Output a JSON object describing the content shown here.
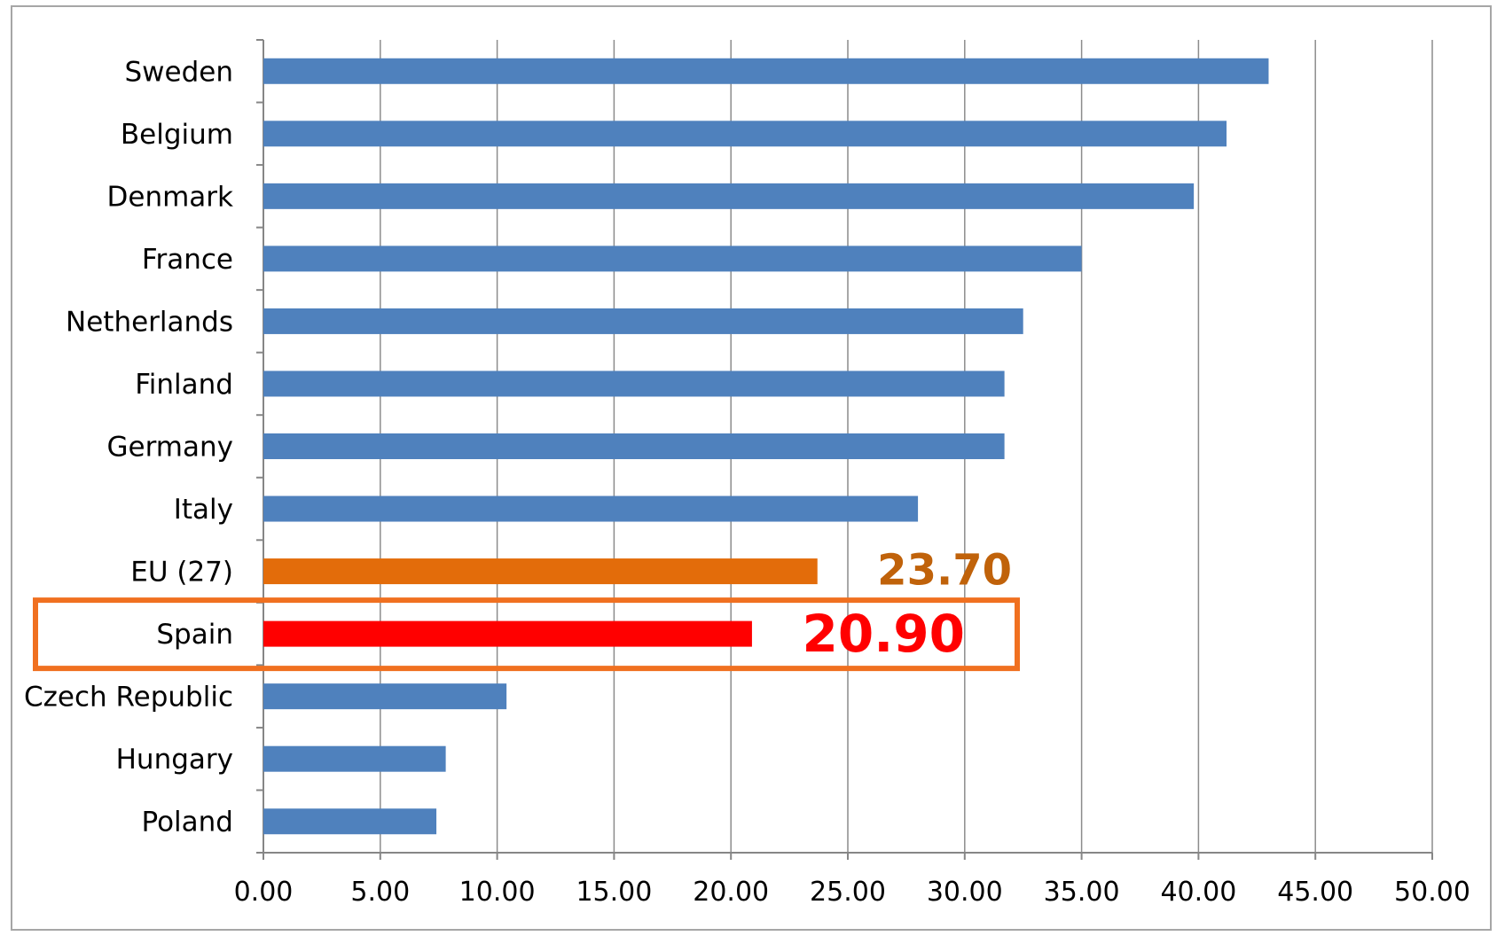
{
  "chart_data": {
    "type": "bar",
    "orientation": "horizontal",
    "categories": [
      "Sweden",
      "Belgium",
      "Denmark",
      "France",
      "Netherlands",
      "Finland",
      "Germany",
      "Italy",
      "EU (27)",
      "Spain",
      "Czech Republic",
      "Hungary",
      "Poland"
    ],
    "values": [
      43.0,
      41.2,
      39.8,
      35.0,
      32.5,
      31.7,
      31.7,
      28.0,
      23.7,
      20.9,
      10.4,
      7.8,
      7.4
    ],
    "bar_colors": [
      "#4f81bd",
      "#4f81bd",
      "#4f81bd",
      "#4f81bd",
      "#4f81bd",
      "#4f81bd",
      "#4f81bd",
      "#4f81bd",
      "#e36c0a",
      "#ff0000",
      "#4f81bd",
      "#4f81bd",
      "#4f81bd"
    ],
    "xlim": [
      0,
      50
    ],
    "x_ticks": [
      "0.00",
      "5.00",
      "10.00",
      "15.00",
      "20.00",
      "25.00",
      "30.00",
      "35.00",
      "40.00",
      "45.00",
      "50.00"
    ],
    "grid": "vertical",
    "annotations": [
      {
        "category": "EU (27)",
        "text": "23.70",
        "color": "#c0620a"
      },
      {
        "category": "Spain",
        "text": "20.90",
        "color": "#ff0000"
      }
    ],
    "highlight": {
      "category": "Spain",
      "color": "#f07020"
    }
  }
}
